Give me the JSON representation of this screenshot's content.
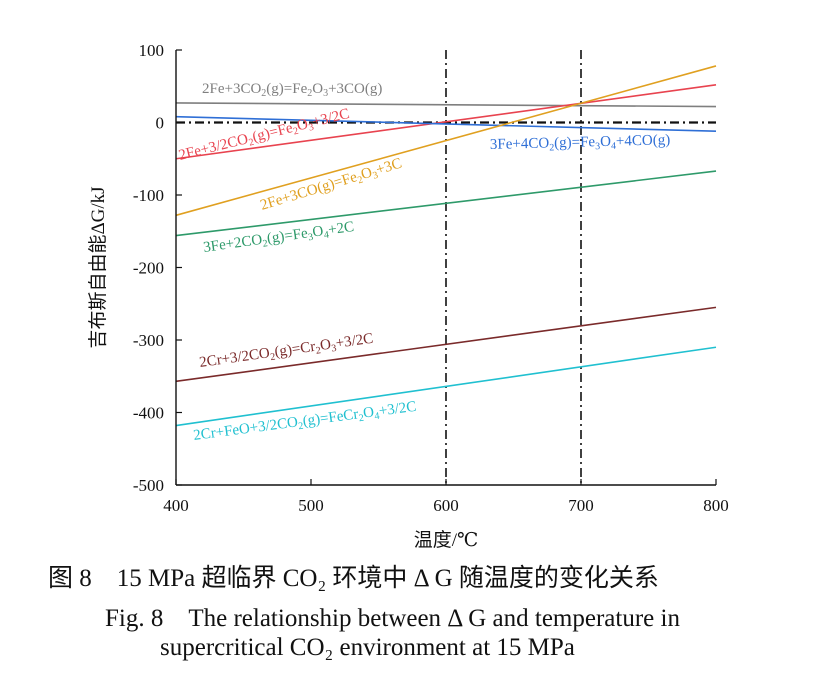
{
  "chart_data": {
    "type": "line",
    "title": "",
    "xlabel": "温度/℃",
    "ylabel": "吉布斯自由能ΔG/kJ",
    "xlim": [
      400,
      800
    ],
    "ylim": [
      -500,
      100
    ],
    "xticks": [
      400,
      500,
      600,
      700,
      800
    ],
    "yticks": [
      100,
      0,
      -100,
      -200,
      -300,
      -400,
      -500
    ],
    "grid": false,
    "reference_lines": {
      "vertical": [
        600,
        700
      ],
      "horizontal": [
        0
      ]
    },
    "series": [
      {
        "name": "2Fe+3CO2(g)=Fe2O3+3CO(g)",
        "label_parts": [
          [
            "2Fe+3CO",
            ""
          ],
          [
            "2",
            "sub"
          ],
          [
            "(g)=Fe",
            ""
          ],
          [
            "2",
            "sub"
          ],
          [
            "O",
            ""
          ],
          [
            "3",
            "sub"
          ],
          [
            "+3CO(g)",
            ""
          ]
        ],
        "color": "#7f7f7f",
        "x": [
          400,
          800
        ],
        "y": [
          27,
          22
        ]
      },
      {
        "name": "2Fe+3/2CO2(g)=Fe2O3+3/2C",
        "label_parts": [
          [
            "2Fe+3/2CO",
            ""
          ],
          [
            "2",
            "sub"
          ],
          [
            "(g)=Fe",
            ""
          ],
          [
            "2",
            "sub"
          ],
          [
            "O",
            ""
          ],
          [
            "3",
            "sub"
          ],
          [
            "+3/2C",
            ""
          ]
        ],
        "color": "#e8434f",
        "x": [
          400,
          800
        ],
        "y": [
          -50,
          52
        ]
      },
      {
        "name": "3Fe+4CO2(g)=Fe3O4+4CO(g)",
        "label_parts": [
          [
            "3Fe+4CO",
            ""
          ],
          [
            "2",
            "sub"
          ],
          [
            "(g)=Fe",
            ""
          ],
          [
            "3",
            "sub"
          ],
          [
            "O",
            ""
          ],
          [
            "4",
            "sub"
          ],
          [
            "+4CO(g)",
            ""
          ]
        ],
        "color": "#2f6fd6",
        "x": [
          400,
          800
        ],
        "y": [
          8,
          -12
        ]
      },
      {
        "name": "2Fe+3CO(g)=Fe2O3+3C",
        "label_parts": [
          [
            "2Fe+3CO(g)=Fe",
            ""
          ],
          [
            "2",
            "sub"
          ],
          [
            "O",
            ""
          ],
          [
            "3",
            "sub"
          ],
          [
            "+3C",
            ""
          ]
        ],
        "color": "#e0a020",
        "x": [
          400,
          800
        ],
        "y": [
          -128,
          78
        ]
      },
      {
        "name": "3Fe+2CO2(g)=Fe3O4+2C",
        "label_parts": [
          [
            "3Fe+2CO",
            ""
          ],
          [
            "2",
            "sub"
          ],
          [
            "(g)=Fe",
            ""
          ],
          [
            "3",
            "sub"
          ],
          [
            "O",
            ""
          ],
          [
            "4",
            "sub"
          ],
          [
            "+2C",
            ""
          ]
        ],
        "color": "#2e9a6a",
        "x": [
          400,
          800
        ],
        "y": [
          -156,
          -67
        ]
      },
      {
        "name": "2Cr+3/2CO2(g)=Cr2O3+3/2C",
        "label_parts": [
          [
            "2Cr+3/2CO",
            ""
          ],
          [
            "2",
            "sub"
          ],
          [
            "(g)=Cr",
            ""
          ],
          [
            "2",
            "sub"
          ],
          [
            "O",
            ""
          ],
          [
            "3",
            "sub"
          ],
          [
            "+3/2C",
            ""
          ]
        ],
        "color": "#7a2a2a",
        "x": [
          400,
          800
        ],
        "y": [
          -357,
          -255
        ]
      },
      {
        "name": "2Cr+FeO+3/2CO2(g)=FeCr2O4+3/2C",
        "label_parts": [
          [
            "2Cr+FeO+3/2CO",
            ""
          ],
          [
            "2",
            "sub"
          ],
          [
            "(g)=FeCr",
            ""
          ],
          [
            "2",
            "sub"
          ],
          [
            "O",
            ""
          ],
          [
            "4",
            "sub"
          ],
          [
            "+3/2C",
            ""
          ]
        ],
        "color": "#20c0d0",
        "x": [
          400,
          800
        ],
        "y": [
          -418,
          -310
        ]
      }
    ]
  },
  "caption": {
    "cn": "图 8　15 MPa 超临界 CO₂ 环境中 Δ G 随温度的变化关系",
    "en_line1": "Fig. 8　The relationship between Δ G and temperature in",
    "en_line2": "supercritical CO₂ environment at 15 MPa"
  }
}
